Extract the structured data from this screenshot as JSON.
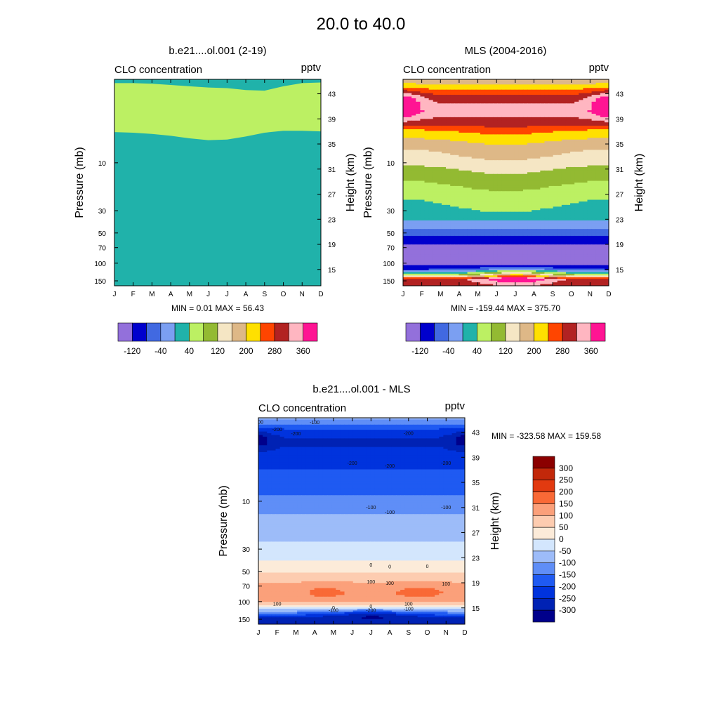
{
  "figure": {
    "title": "20.0 to  40.0"
  },
  "colors": {
    "top_levels": [
      "#9370DB",
      "#0000CD",
      "#4169E1",
      "#7B9FF2",
      "#20B2AA",
      "#BCF063",
      "#93BA32",
      "#F5E6C4",
      "#DEB887",
      "#FFE000",
      "#FF4500",
      "#B22222",
      "#FFB6C1",
      "#FF1493"
    ],
    "diff_levels": [
      "#00008B",
      "#0022B4",
      "#0033DD",
      "#1F5AF2",
      "#5F8EF7",
      "#9DBCF9",
      "#D3E6FD",
      "#FCEBD9",
      "#FDCCB0",
      "#FBA07A",
      "#F96936",
      "#E23A10",
      "#C2280A",
      "#8B0000"
    ]
  },
  "panels": {
    "model": {
      "title": "b.e21....ol.001 (2-19)",
      "left_label": "CLO concentration",
      "right_label": "pptv",
      "ylabel_left": "Pressure (mb)",
      "ylabel_right": "Height (km)",
      "minmax": "MIN =   0.01  MAX =  56.43"
    },
    "mls": {
      "title": "MLS (2004-2016)",
      "left_label": "CLO concentration",
      "right_label": "pptv",
      "ylabel_left": "Pressure (mb)",
      "ylabel_right": "Height (km)",
      "minmax": "MIN = -159.44  MAX = 375.70"
    },
    "diff": {
      "title": "b.e21....ol.001 - MLS",
      "left_label": "CLO concentration",
      "right_label": "pptv",
      "ylabel_left": "Pressure (mb)",
      "ylabel_right": "Height (km)",
      "minmax": "MIN = -323.58  MAX = 159.58"
    }
  },
  "chart_data": [
    {
      "type": "heatmap",
      "title": "b.e21....ol.001 (2-19)",
      "x": [
        "J",
        "F",
        "M",
        "A",
        "M",
        "J",
        "J",
        "A",
        "S",
        "O",
        "N",
        "D"
      ],
      "pressure_ticks": [
        "10",
        "30",
        "50",
        "70",
        "100",
        "150"
      ],
      "pressure_tick_values": [
        10,
        30,
        50,
        70,
        100,
        150
      ],
      "height_ticks": [
        "43",
        "39",
        "35",
        "31",
        "27",
        "23",
        "19",
        "15"
      ],
      "height_tick_values": [
        43,
        39,
        35,
        31,
        27,
        23,
        19,
        15
      ],
      "ylim_height_km": [
        12.4,
        45.3
      ],
      "units": "pptv",
      "min": 0.01,
      "max": 56.43,
      "boundary_120_to_80_km": [
        36.9,
        36.8,
        36.6,
        36.3,
        35.9,
        35.6,
        35.7,
        36.2,
        36.8,
        37.1,
        37.1,
        37.0
      ],
      "boundary_80_to_40_km": [
        44.7,
        44.7,
        44.6,
        44.4,
        44.2,
        44.0,
        43.9,
        43.6,
        43.5,
        44.2,
        44.7,
        44.8
      ]
    },
    {
      "type": "heatmap",
      "title": "MLS (2004-2016)",
      "x": [
        "J",
        "F",
        "M",
        "A",
        "M",
        "J",
        "J",
        "A",
        "S",
        "O",
        "N",
        "D"
      ],
      "pressure_ticks": [
        "10",
        "30",
        "50",
        "70",
        "100",
        "150"
      ],
      "pressure_tick_values": [
        10,
        30,
        50,
        70,
        100,
        150
      ],
      "height_ticks": [
        "43",
        "39",
        "35",
        "31",
        "27",
        "23",
        "19",
        "15"
      ],
      "height_tick_values": [
        43,
        39,
        35,
        31,
        27,
        23,
        19,
        15
      ],
      "ylim_height_km": [
        12.4,
        45.3
      ],
      "units": "pptv",
      "min": -159.44,
      "max": 375.7,
      "profile_height_km": [
        45.3,
        44.5,
        43.5,
        42.5,
        41.5,
        40.0,
        38.5,
        37.0,
        35.5,
        34.0,
        32.5,
        31.0,
        29.0,
        27.0,
        25.0,
        23.5,
        22.0,
        21.0,
        20.0,
        19.0,
        18.0,
        17.0,
        16.0,
        15.5,
        15.0,
        14.5,
        14.0,
        13.5
      ],
      "profile_pptv": [
        160,
        200,
        250,
        300,
        320,
        340,
        300,
        240,
        200,
        170,
        150,
        120,
        90,
        60,
        40,
        20,
        -20,
        -60,
        -90,
        -120,
        -130,
        -140,
        -150,
        -110,
        -80,
        10,
        100,
        300
      ]
    },
    {
      "type": "heatmap",
      "title": "b.e21....ol.001 - MLS",
      "x": [
        "J",
        "F",
        "M",
        "A",
        "M",
        "J",
        "J",
        "A",
        "S",
        "O",
        "N",
        "D"
      ],
      "pressure_ticks": [
        "10",
        "30",
        "50",
        "70",
        "100",
        "150"
      ],
      "pressure_tick_values": [
        10,
        30,
        50,
        70,
        100,
        150
      ],
      "height_ticks": [
        "43",
        "39",
        "35",
        "31",
        "27",
        "23",
        "19",
        "15"
      ],
      "height_tick_values": [
        43,
        39,
        35,
        31,
        27,
        23,
        19,
        15
      ],
      "ylim_height_km": [
        12.4,
        45.3
      ],
      "units": "pptv",
      "min": -323.58,
      "max": 159.58,
      "contour_levels": [
        -300,
        -250,
        -200,
        -150,
        -100,
        -50,
        0,
        50,
        100,
        150,
        200,
        250,
        300
      ],
      "profile_height_km": [
        45.3,
        44.5,
        43.5,
        42.5,
        41.5,
        40.0,
        38.5,
        37.0,
        35.0,
        33.0,
        31.0,
        29.0,
        27.0,
        25.0,
        23.5,
        22.0,
        21.0,
        20.0,
        19.0,
        18.0,
        17.0,
        16.0,
        15.5,
        15.0,
        14.5,
        14.0,
        13.5
      ],
      "profile_pptv": [
        -80,
        -130,
        -200,
        -240,
        -260,
        -240,
        -215,
        -200,
        -180,
        -150,
        -110,
        -90,
        -70,
        -40,
        -20,
        10,
        40,
        70,
        100,
        120,
        130,
        110,
        60,
        -20,
        -90,
        -180,
        -250
      ],
      "contour_labels": [
        {
          "text": "-100",
          "x": "A",
          "z_km": 44.5
        },
        {
          "text": "-100",
          "x": "J",
          "z_km": 44.6
        },
        {
          "text": "-200",
          "x": "F",
          "z_km": 43.4
        },
        {
          "text": "-200",
          "x": "M",
          "z_km": 42.7
        },
        {
          "text": "-200",
          "x": "S",
          "z_km": 42.8
        },
        {
          "text": "-200",
          "x": "A",
          "z_km": 37.6
        },
        {
          "text": "-200",
          "x": "J",
          "z_km": 38.0
        },
        {
          "text": "-200",
          "x": "N",
          "z_km": 38.0
        },
        {
          "text": "-100",
          "x": "A",
          "z_km": 30.2
        },
        {
          "text": "-100",
          "x": "J",
          "z_km": 31.0
        },
        {
          "text": "-100",
          "x": "N",
          "z_km": 31.0
        },
        {
          "text": "0",
          "x": "A",
          "z_km": 21.5
        },
        {
          "text": "0",
          "x": "J",
          "z_km": 21.8
        },
        {
          "text": "0",
          "x": "O",
          "z_km": 21.6
        },
        {
          "text": "100",
          "x": "A",
          "z_km": 18.9
        },
        {
          "text": "100",
          "x": "J",
          "z_km": 19.1
        },
        {
          "text": "100",
          "x": "N",
          "z_km": 18.8
        },
        {
          "text": "100",
          "x": "F",
          "z_km": 15.6
        },
        {
          "text": "0",
          "x": "M",
          "z_km": 15.0
        },
        {
          "text": "-100",
          "x": "M",
          "z_km": 14.6
        },
        {
          "text": "0",
          "x": "J",
          "z_km": 15.2
        },
        {
          "text": "-200",
          "x": "J",
          "z_km": 14.6
        },
        {
          "text": "100",
          "x": "S",
          "z_km": 15.6
        },
        {
          "text": "-100",
          "x": "S",
          "z_km": 14.8
        }
      ]
    }
  ],
  "colorbars": {
    "top_labels": [
      "-120",
      "-40",
      "40",
      "120",
      "200",
      "280",
      "360"
    ],
    "diff_labels": [
      "300",
      "250",
      "200",
      "150",
      "100",
      "50",
      "0",
      "-50",
      "-100",
      "-150",
      "-200",
      "-250",
      "-300"
    ]
  }
}
